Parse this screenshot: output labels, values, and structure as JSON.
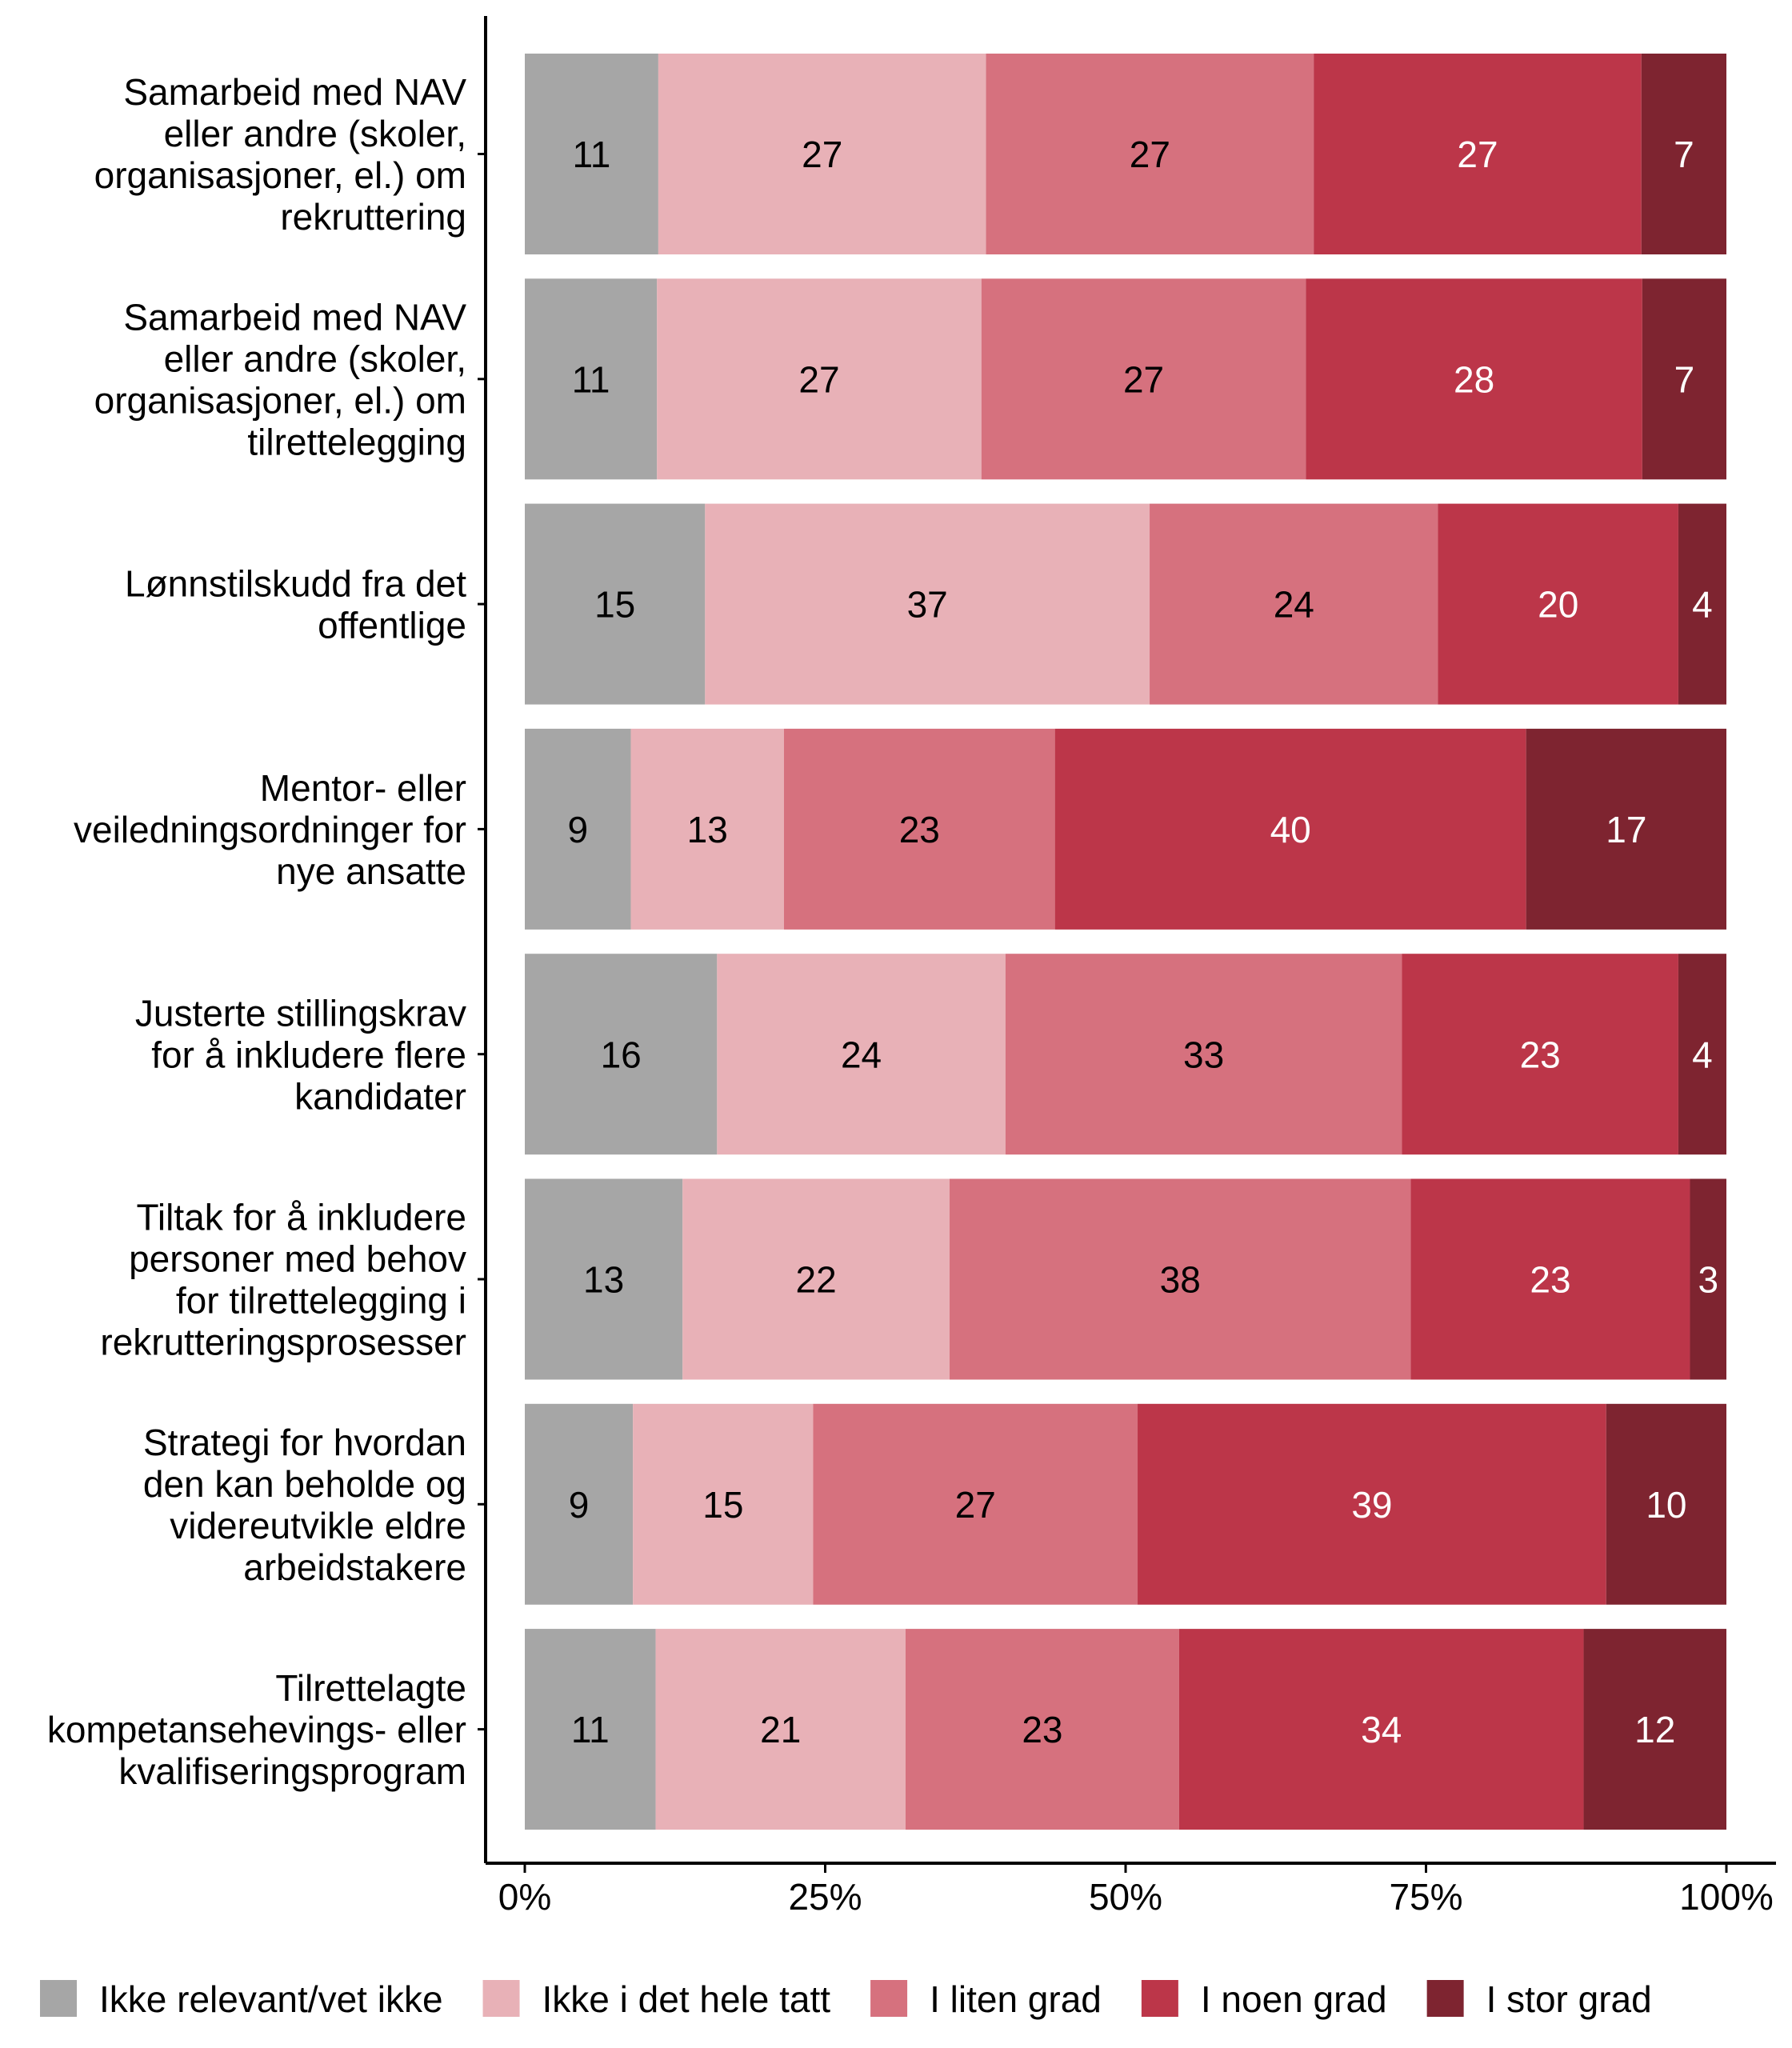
{
  "chart_data": {
    "type": "bar",
    "orientation": "horizontal",
    "stacked": "percent",
    "categories": [
      "Samarbeid med NAV\neller andre (skoler,\norganisasjoner, el.) om\nrekruttering",
      "Samarbeid med NAV\neller andre (skoler,\norganisasjoner, el.) om\ntilrettelegging",
      "Lønnstilskudd fra det\noffentlige",
      "Mentor- eller\nveiledningsordninger for\nnye ansatte",
      "Justerte stillingskrav\nfor å inkludere flere\nkandidater",
      "Tiltak for å inkludere\npersoner med behov\nfor tilrettelegging i\nrekrutteringsprosesser",
      "Strategi for hvordan\nden kan beholde og\nvidereutvikle eldre\narbeidstakere",
      "Tilrettelagte\nkompetansehevings- eller\nkvalifiseringsprogram"
    ],
    "series": [
      {
        "name": "Ikke relevant/vet ikke",
        "color": "#A6A6A6",
        "label_color": "#000000",
        "values": [
          11,
          11,
          15,
          9,
          16,
          13,
          9,
          11
        ]
      },
      {
        "name": "Ikke i det hele tatt",
        "color": "#E8B1B7",
        "label_color": "#000000",
        "values": [
          27,
          27,
          37,
          13,
          24,
          22,
          15,
          21
        ]
      },
      {
        "name": "I liten grad",
        "color": "#D6717E",
        "label_color": "#000000",
        "values": [
          27,
          27,
          24,
          23,
          33,
          38,
          27,
          23
        ]
      },
      {
        "name": "I noen grad",
        "color": "#BC3649",
        "label_color": "#FFFFFF",
        "values": [
          27,
          28,
          20,
          40,
          23,
          23,
          39,
          34
        ]
      },
      {
        "name": "I stor grad",
        "color": "#7E2430",
        "label_color": "#FFFFFF",
        "values": [
          7,
          7,
          4,
          17,
          4,
          3,
          10,
          12
        ]
      }
    ],
    "x_ticks": [
      "0%",
      "25%",
      "50%",
      "75%",
      "100%"
    ],
    "xlim": [
      0,
      100
    ],
    "grid": false,
    "legend_position": "bottom"
  }
}
